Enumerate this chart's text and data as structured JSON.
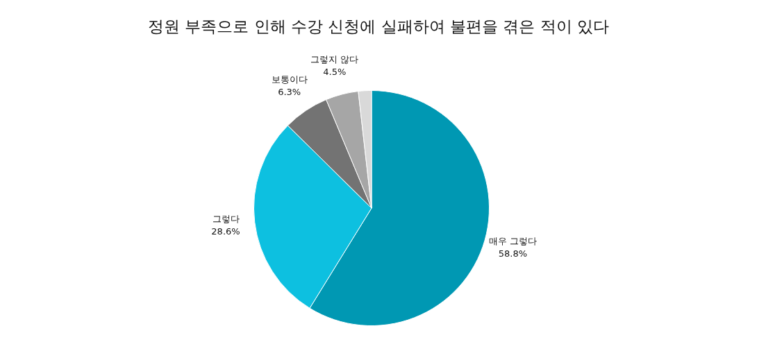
{
  "chart_data": {
    "type": "pie",
    "title": "정원 부족으로 인해 수강 신청에 실패하여 불편을 겪은 적이 있다",
    "categories": [
      "매우 그렇다",
      "그렇다",
      "보통이다",
      "그렇지 않다",
      null
    ],
    "values": [
      58.8,
      28.6,
      6.3,
      4.5,
      1.8
    ],
    "value_labels": [
      "58.8%",
      "28.6%",
      "6.3%",
      "4.5%",
      null
    ],
    "colors": [
      "#0098b3",
      "#0dc0e0",
      "#737373",
      "#a6a6a6",
      "#d9d9d9"
    ],
    "legend": false
  }
}
